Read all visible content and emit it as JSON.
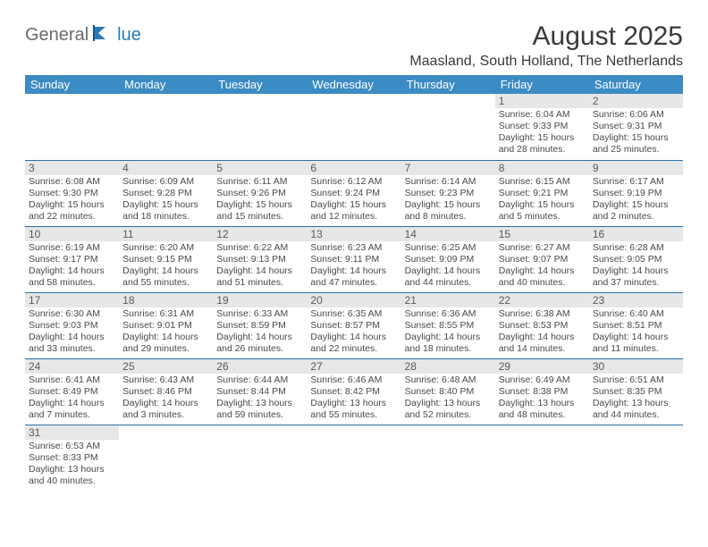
{
  "logo": {
    "word1": "General",
    "word2": "lue"
  },
  "title": "August 2025",
  "location": "Maasland, South Holland, The Netherlands",
  "colors": {
    "header_bg": "#3b8bc4",
    "header_text": "#ffffff",
    "rule": "#2a6fa8",
    "daynum_bg": "#e6e7e8",
    "text": "#4a4a4a",
    "logo_gray": "#6b6b6b",
    "logo_blue": "#2a7ab8"
  },
  "day_headers": [
    "Sunday",
    "Monday",
    "Tuesday",
    "Wednesday",
    "Thursday",
    "Friday",
    "Saturday"
  ],
  "weeks": [
    [
      null,
      null,
      null,
      null,
      null,
      {
        "n": "1",
        "rise": "6:04 AM",
        "set": "9:33 PM",
        "dl": "15 hours and 28 minutes."
      },
      {
        "n": "2",
        "rise": "6:06 AM",
        "set": "9:31 PM",
        "dl": "15 hours and 25 minutes."
      }
    ],
    [
      {
        "n": "3",
        "rise": "6:08 AM",
        "set": "9:30 PM",
        "dl": "15 hours and 22 minutes."
      },
      {
        "n": "4",
        "rise": "6:09 AM",
        "set": "9:28 PM",
        "dl": "15 hours and 18 minutes."
      },
      {
        "n": "5",
        "rise": "6:11 AM",
        "set": "9:26 PM",
        "dl": "15 hours and 15 minutes."
      },
      {
        "n": "6",
        "rise": "6:12 AM",
        "set": "9:24 PM",
        "dl": "15 hours and 12 minutes."
      },
      {
        "n": "7",
        "rise": "6:14 AM",
        "set": "9:23 PM",
        "dl": "15 hours and 8 minutes."
      },
      {
        "n": "8",
        "rise": "6:15 AM",
        "set": "9:21 PM",
        "dl": "15 hours and 5 minutes."
      },
      {
        "n": "9",
        "rise": "6:17 AM",
        "set": "9:19 PM",
        "dl": "15 hours and 2 minutes."
      }
    ],
    [
      {
        "n": "10",
        "rise": "6:19 AM",
        "set": "9:17 PM",
        "dl": "14 hours and 58 minutes."
      },
      {
        "n": "11",
        "rise": "6:20 AM",
        "set": "9:15 PM",
        "dl": "14 hours and 55 minutes."
      },
      {
        "n": "12",
        "rise": "6:22 AM",
        "set": "9:13 PM",
        "dl": "14 hours and 51 minutes."
      },
      {
        "n": "13",
        "rise": "6:23 AM",
        "set": "9:11 PM",
        "dl": "14 hours and 47 minutes."
      },
      {
        "n": "14",
        "rise": "6:25 AM",
        "set": "9:09 PM",
        "dl": "14 hours and 44 minutes."
      },
      {
        "n": "15",
        "rise": "6:27 AM",
        "set": "9:07 PM",
        "dl": "14 hours and 40 minutes."
      },
      {
        "n": "16",
        "rise": "6:28 AM",
        "set": "9:05 PM",
        "dl": "14 hours and 37 minutes."
      }
    ],
    [
      {
        "n": "17",
        "rise": "6:30 AM",
        "set": "9:03 PM",
        "dl": "14 hours and 33 minutes."
      },
      {
        "n": "18",
        "rise": "6:31 AM",
        "set": "9:01 PM",
        "dl": "14 hours and 29 minutes."
      },
      {
        "n": "19",
        "rise": "6:33 AM",
        "set": "8:59 PM",
        "dl": "14 hours and 26 minutes."
      },
      {
        "n": "20",
        "rise": "6:35 AM",
        "set": "8:57 PM",
        "dl": "14 hours and 22 minutes."
      },
      {
        "n": "21",
        "rise": "6:36 AM",
        "set": "8:55 PM",
        "dl": "14 hours and 18 minutes."
      },
      {
        "n": "22",
        "rise": "6:38 AM",
        "set": "8:53 PM",
        "dl": "14 hours and 14 minutes."
      },
      {
        "n": "23",
        "rise": "6:40 AM",
        "set": "8:51 PM",
        "dl": "14 hours and 11 minutes."
      }
    ],
    [
      {
        "n": "24",
        "rise": "6:41 AM",
        "set": "8:49 PM",
        "dl": "14 hours and 7 minutes."
      },
      {
        "n": "25",
        "rise": "6:43 AM",
        "set": "8:46 PM",
        "dl": "14 hours and 3 minutes."
      },
      {
        "n": "26",
        "rise": "6:44 AM",
        "set": "8:44 PM",
        "dl": "13 hours and 59 minutes."
      },
      {
        "n": "27",
        "rise": "6:46 AM",
        "set": "8:42 PM",
        "dl": "13 hours and 55 minutes."
      },
      {
        "n": "28",
        "rise": "6:48 AM",
        "set": "8:40 PM",
        "dl": "13 hours and 52 minutes."
      },
      {
        "n": "29",
        "rise": "6:49 AM",
        "set": "8:38 PM",
        "dl": "13 hours and 48 minutes."
      },
      {
        "n": "30",
        "rise": "6:51 AM",
        "set": "8:35 PM",
        "dl": "13 hours and 44 minutes."
      }
    ],
    [
      {
        "n": "31",
        "rise": "6:53 AM",
        "set": "8:33 PM",
        "dl": "13 hours and 40 minutes."
      },
      null,
      null,
      null,
      null,
      null,
      null
    ]
  ]
}
